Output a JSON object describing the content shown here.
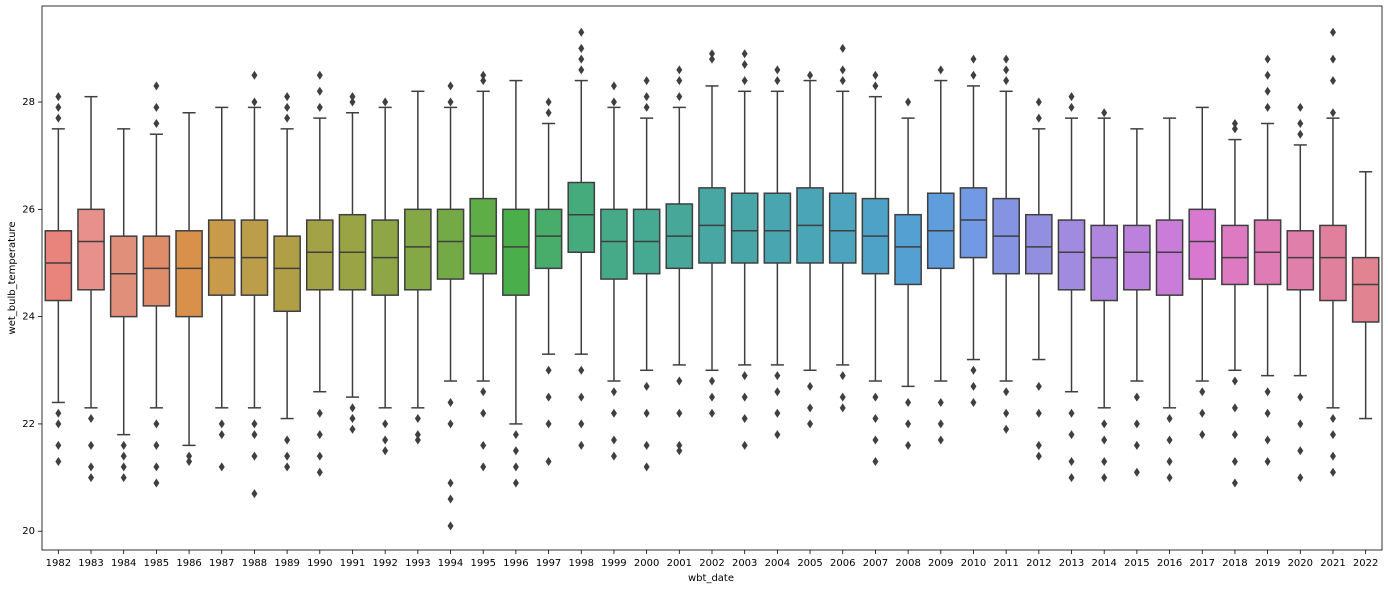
{
  "chart_data": {
    "type": "box",
    "x_label": "wbt_date",
    "y_label": "wet_bulb_temperature",
    "categories": [
      "1982",
      "1983",
      "1984",
      "1985",
      "1986",
      "1987",
      "1988",
      "1989",
      "1990",
      "1991",
      "1992",
      "1993",
      "1994",
      "1995",
      "1996",
      "1997",
      "1998",
      "1999",
      "2000",
      "2001",
      "2002",
      "2003",
      "2004",
      "2005",
      "2006",
      "2007",
      "2008",
      "2009",
      "2010",
      "2011",
      "2012",
      "2013",
      "2014",
      "2015",
      "2016",
      "2017",
      "2018",
      "2019",
      "2020",
      "2021",
      "2022"
    ],
    "colors": [
      "#e8847c",
      "#e8918c",
      "#e0907a",
      "#de8c6a",
      "#d9904a",
      "#c99a4a",
      "#bc9d4a",
      "#b09f46",
      "#a4a246",
      "#9aa445",
      "#8fa646",
      "#84a846",
      "#74aa46",
      "#5fad46",
      "#4aaf4a",
      "#48ad6a",
      "#46ab7c",
      "#46aa88",
      "#46a991",
      "#47a89a",
      "#48a7a2",
      "#48a6a9",
      "#49a6b0",
      "#4aa5b7",
      "#4ca4bf",
      "#4ea2c8",
      "#55a0d2",
      "#5f9ddc",
      "#7299e3",
      "#8494e3",
      "#928fe1",
      "#a08be0",
      "#ae86de",
      "#bb81dc",
      "#c97cd8",
      "#d878d0",
      "#dd7ac2",
      "#df7cb5",
      "#e07fa9",
      "#e1809c",
      "#e28392"
    ],
    "boxes": [
      {
        "whislo": 22.4,
        "q1": 24.3,
        "med": 25.0,
        "q3": 25.6,
        "whishi": 27.5,
        "fliers": [
          21.3,
          21.6,
          22.0,
          22.2,
          27.7,
          27.9,
          28.1
        ]
      },
      {
        "whislo": 22.3,
        "q1": 24.5,
        "med": 25.4,
        "q3": 26.0,
        "whishi": 28.1,
        "fliers": [
          21.0,
          21.2,
          21.6,
          22.1
        ]
      },
      {
        "whislo": 21.8,
        "q1": 24.0,
        "med": 24.8,
        "q3": 25.5,
        "whishi": 27.5,
        "fliers": [
          21.0,
          21.2,
          21.4,
          21.6
        ]
      },
      {
        "whislo": 22.3,
        "q1": 24.2,
        "med": 24.9,
        "q3": 25.5,
        "whishi": 27.4,
        "fliers": [
          20.9,
          21.2,
          21.6,
          22.0,
          27.6,
          27.9,
          28.3
        ]
      },
      {
        "whislo": 21.6,
        "q1": 24.0,
        "med": 24.9,
        "q3": 25.6,
        "whishi": 27.8,
        "fliers": [
          21.3,
          21.4
        ]
      },
      {
        "whislo": 22.3,
        "q1": 24.4,
        "med": 25.1,
        "q3": 25.8,
        "whishi": 27.9,
        "fliers": [
          21.2,
          21.8,
          22.0
        ]
      },
      {
        "whislo": 22.3,
        "q1": 24.4,
        "med": 25.1,
        "q3": 25.8,
        "whishi": 27.9,
        "fliers": [
          20.7,
          21.4,
          21.8,
          22.0,
          28.0,
          28.5
        ]
      },
      {
        "whislo": 22.1,
        "q1": 24.1,
        "med": 24.9,
        "q3": 25.5,
        "whishi": 27.5,
        "fliers": [
          21.2,
          21.4,
          21.7,
          27.7,
          27.9,
          28.1
        ]
      },
      {
        "whislo": 22.6,
        "q1": 24.5,
        "med": 25.2,
        "q3": 25.8,
        "whishi": 27.7,
        "fliers": [
          21.1,
          21.4,
          21.8,
          22.2,
          27.9,
          28.2,
          28.5
        ]
      },
      {
        "whislo": 22.5,
        "q1": 24.5,
        "med": 25.2,
        "q3": 25.9,
        "whishi": 27.8,
        "fliers": [
          21.9,
          22.1,
          22.3,
          28.0,
          28.1
        ]
      },
      {
        "whislo": 22.3,
        "q1": 24.4,
        "med": 25.1,
        "q3": 25.8,
        "whishi": 27.9,
        "fliers": [
          21.5,
          21.7,
          22.0,
          28.0
        ]
      },
      {
        "whislo": 22.3,
        "q1": 24.5,
        "med": 25.3,
        "q3": 26.0,
        "whishi": 28.2,
        "fliers": [
          21.7,
          21.8,
          22.1
        ]
      },
      {
        "whislo": 22.8,
        "q1": 24.7,
        "med": 25.4,
        "q3": 26.0,
        "whishi": 27.9,
        "fliers": [
          20.1,
          20.6,
          20.9,
          22.0,
          22.4,
          28.0,
          28.3
        ]
      },
      {
        "whislo": 22.8,
        "q1": 24.8,
        "med": 25.5,
        "q3": 26.2,
        "whishi": 28.2,
        "fliers": [
          21.2,
          21.6,
          22.2,
          22.6,
          28.4,
          28.5
        ]
      },
      {
        "whislo": 22.0,
        "q1": 24.4,
        "med": 25.3,
        "q3": 26.0,
        "whishi": 28.4,
        "fliers": [
          20.9,
          21.2,
          21.5,
          21.8
        ]
      },
      {
        "whislo": 23.3,
        "q1": 24.9,
        "med": 25.5,
        "q3": 26.0,
        "whishi": 27.6,
        "fliers": [
          21.3,
          22.0,
          22.5,
          23.0,
          27.8,
          28.0
        ]
      },
      {
        "whislo": 23.3,
        "q1": 25.2,
        "med": 25.9,
        "q3": 26.5,
        "whishi": 28.4,
        "fliers": [
          21.6,
          22.0,
          22.5,
          23.0,
          28.6,
          28.8,
          29.0,
          29.3
        ]
      },
      {
        "whislo": 22.8,
        "q1": 24.7,
        "med": 25.4,
        "q3": 26.0,
        "whishi": 27.9,
        "fliers": [
          21.4,
          21.7,
          22.2,
          22.6,
          28.0,
          28.3
        ]
      },
      {
        "whislo": 23.0,
        "q1": 24.8,
        "med": 25.4,
        "q3": 26.0,
        "whishi": 27.7,
        "fliers": [
          21.2,
          21.6,
          22.2,
          22.7,
          27.9,
          28.1,
          28.4
        ]
      },
      {
        "whislo": 23.1,
        "q1": 24.9,
        "med": 25.5,
        "q3": 26.1,
        "whishi": 27.9,
        "fliers": [
          21.5,
          21.6,
          22.2,
          22.8,
          28.1,
          28.4,
          28.6
        ]
      },
      {
        "whislo": 23.0,
        "q1": 25.0,
        "med": 25.7,
        "q3": 26.4,
        "whishi": 28.3,
        "fliers": [
          22.2,
          22.5,
          22.8,
          28.8,
          28.9
        ]
      },
      {
        "whislo": 23.1,
        "q1": 25.0,
        "med": 25.6,
        "q3": 26.3,
        "whishi": 28.2,
        "fliers": [
          21.6,
          22.1,
          22.5,
          22.9,
          28.4,
          28.7,
          28.9
        ]
      },
      {
        "whislo": 23.1,
        "q1": 25.0,
        "med": 25.6,
        "q3": 26.3,
        "whishi": 28.2,
        "fliers": [
          21.8,
          22.2,
          22.6,
          22.9,
          28.4,
          28.6
        ]
      },
      {
        "whislo": 23.0,
        "q1": 25.0,
        "med": 25.7,
        "q3": 26.4,
        "whishi": 28.4,
        "fliers": [
          22.0,
          22.3,
          22.7,
          28.5
        ]
      },
      {
        "whislo": 23.1,
        "q1": 25.0,
        "med": 25.6,
        "q3": 26.3,
        "whishi": 28.2,
        "fliers": [
          22.3,
          22.5,
          22.9,
          28.4,
          28.6,
          29.0
        ]
      },
      {
        "whislo": 22.8,
        "q1": 24.8,
        "med": 25.5,
        "q3": 26.2,
        "whishi": 28.1,
        "fliers": [
          21.3,
          21.7,
          22.1,
          22.5,
          28.3,
          28.5
        ]
      },
      {
        "whislo": 22.7,
        "q1": 24.6,
        "med": 25.3,
        "q3": 25.9,
        "whishi": 27.7,
        "fliers": [
          21.6,
          22.0,
          22.4,
          28.0
        ]
      },
      {
        "whislo": 22.8,
        "q1": 24.9,
        "med": 25.6,
        "q3": 26.3,
        "whishi": 28.4,
        "fliers": [
          21.7,
          22.0,
          22.4,
          28.6
        ]
      },
      {
        "whislo": 23.2,
        "q1": 25.1,
        "med": 25.8,
        "q3": 26.4,
        "whishi": 28.3,
        "fliers": [
          22.4,
          22.7,
          23.0,
          28.5,
          28.8
        ]
      },
      {
        "whislo": 22.8,
        "q1": 24.8,
        "med": 25.5,
        "q3": 26.2,
        "whishi": 28.2,
        "fliers": [
          21.9,
          22.2,
          22.6,
          28.4,
          28.6,
          28.8
        ]
      },
      {
        "whislo": 23.2,
        "q1": 24.8,
        "med": 25.3,
        "q3": 25.9,
        "whishi": 27.5,
        "fliers": [
          21.4,
          21.6,
          22.2,
          22.7,
          27.7,
          28.0
        ]
      },
      {
        "whislo": 22.6,
        "q1": 24.5,
        "med": 25.2,
        "q3": 25.8,
        "whishi": 27.7,
        "fliers": [
          21.0,
          21.3,
          21.8,
          22.2,
          27.9,
          28.1
        ]
      },
      {
        "whislo": 22.3,
        "q1": 24.3,
        "med": 25.1,
        "q3": 25.7,
        "whishi": 27.7,
        "fliers": [
          21.0,
          21.3,
          21.7,
          22.0,
          27.8
        ]
      },
      {
        "whislo": 22.8,
        "q1": 24.5,
        "med": 25.2,
        "q3": 25.7,
        "whishi": 27.5,
        "fliers": [
          21.1,
          21.6,
          22.0,
          22.5
        ]
      },
      {
        "whislo": 22.3,
        "q1": 24.4,
        "med": 25.2,
        "q3": 25.8,
        "whishi": 27.7,
        "fliers": [
          21.0,
          21.3,
          21.7,
          22.1
        ]
      },
      {
        "whislo": 22.8,
        "q1": 24.7,
        "med": 25.4,
        "q3": 26.0,
        "whishi": 27.9,
        "fliers": [
          21.8,
          22.2,
          22.6
        ]
      },
      {
        "whislo": 23.0,
        "q1": 24.6,
        "med": 25.1,
        "q3": 25.7,
        "whishi": 27.3,
        "fliers": [
          20.9,
          21.3,
          21.8,
          22.3,
          22.8,
          27.5,
          27.6
        ]
      },
      {
        "whislo": 22.9,
        "q1": 24.6,
        "med": 25.2,
        "q3": 25.8,
        "whishi": 27.6,
        "fliers": [
          21.3,
          21.7,
          22.2,
          22.6,
          27.9,
          28.2,
          28.5,
          28.8
        ]
      },
      {
        "whislo": 22.9,
        "q1": 24.5,
        "med": 25.1,
        "q3": 25.6,
        "whishi": 27.2,
        "fliers": [
          21.0,
          21.5,
          22.0,
          22.5,
          27.4,
          27.6,
          27.9
        ]
      },
      {
        "whislo": 22.3,
        "q1": 24.3,
        "med": 25.1,
        "q3": 25.7,
        "whishi": 27.7,
        "fliers": [
          21.1,
          21.4,
          21.8,
          22.1,
          27.8,
          28.4,
          28.8,
          29.3
        ]
      },
      {
        "whislo": 22.1,
        "q1": 23.9,
        "med": 24.6,
        "q3": 25.1,
        "whishi": 26.7,
        "fliers": []
      }
    ],
    "ylim": [
      19.65,
      29.79
    ],
    "yticks": [
      20,
      22,
      24,
      26,
      28
    ]
  }
}
